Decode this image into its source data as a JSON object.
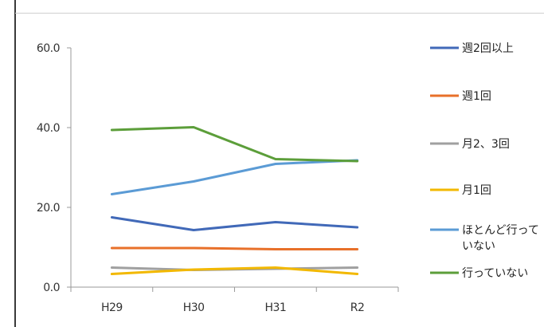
{
  "chart_data": {
    "type": "line",
    "title": "",
    "xlabel": "",
    "ylabel": "",
    "categories": [
      "H29",
      "H30",
      "H31",
      "R2"
    ],
    "ylim": [
      0,
      60
    ],
    "yticks": [
      "0.0",
      "20.0",
      "40.0",
      "60.0"
    ],
    "ytick_values": [
      0,
      20,
      40,
      60
    ],
    "grid": false,
    "legend_position": "right",
    "series": [
      {
        "name": "週2回以上",
        "color": "#4169b8",
        "values": [
          17.5,
          14.3,
          16.3,
          15.0
        ]
      },
      {
        "name": "週1回",
        "color": "#e8702a",
        "values": [
          9.8,
          9.8,
          9.5,
          9.5
        ]
      },
      {
        "name": "月2、3回",
        "color": "#a0a0a0",
        "values": [
          4.9,
          4.3,
          4.6,
          4.9
        ]
      },
      {
        "name": "月1回",
        "color": "#f2b800",
        "values": [
          3.3,
          4.4,
          4.9,
          3.3
        ]
      },
      {
        "name": "ほとんど行っていない",
        "name_lines": [
          "ほとんど行って",
          "いない"
        ],
        "color": "#5b9bd5",
        "values": [
          23.3,
          26.5,
          30.9,
          31.8
        ]
      },
      {
        "name": "行っていない",
        "color": "#5c9e3a",
        "values": [
          39.4,
          40.1,
          32.1,
          31.6
        ]
      }
    ]
  }
}
